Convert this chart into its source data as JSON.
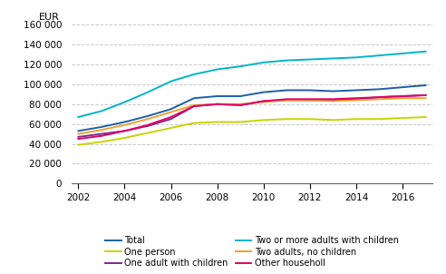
{
  "years": [
    2002,
    2003,
    2004,
    2005,
    2006,
    2007,
    2008,
    2009,
    2010,
    2011,
    2012,
    2013,
    2014,
    2015,
    2016,
    2017
  ],
  "series": {
    "Total": [
      53000,
      57000,
      62000,
      68000,
      75000,
      86000,
      88000,
      88000,
      92000,
      94000,
      94000,
      93000,
      94000,
      95000,
      97000,
      99000
    ],
    "One person": [
      39000,
      42000,
      46000,
      51000,
      56000,
      61000,
      62000,
      62000,
      64000,
      65000,
      65000,
      64000,
      65000,
      65000,
      66000,
      67000
    ],
    "One adult with children": [
      47000,
      50000,
      53000,
      58000,
      65000,
      78000,
      80000,
      79000,
      83000,
      84000,
      84000,
      84000,
      85000,
      87000,
      88000,
      89000
    ],
    "Two or more adults with children": [
      67000,
      73000,
      82000,
      92000,
      103000,
      110000,
      115000,
      118000,
      122000,
      124000,
      125000,
      126000,
      127000,
      129000,
      131000,
      133000
    ],
    "Two adults, no children": [
      50000,
      54000,
      59000,
      65000,
      72000,
      79000,
      80000,
      80000,
      82000,
      84000,
      84000,
      83000,
      84000,
      85000,
      86000,
      86000
    ],
    "Other householl": [
      45000,
      48000,
      53000,
      59000,
      67000,
      78000,
      80000,
      79000,
      83000,
      85000,
      85000,
      85000,
      86000,
      87000,
      88000,
      89000
    ]
  },
  "colors": {
    "Total": "#1a5fa8",
    "One person": "#c8d400",
    "One adult with children": "#7b2a8b",
    "Two or more adults with children": "#00b4c8",
    "Two adults, no children": "#f0a030",
    "Other householl": "#e0006a"
  },
  "ylabel": "EUR",
  "ylim": [
    0,
    160000
  ],
  "yticks": [
    0,
    20000,
    40000,
    60000,
    80000,
    100000,
    120000,
    140000,
    160000
  ],
  "xlim_min": 2002,
  "xlim_max": 2017,
  "xticks": [
    2002,
    2004,
    2006,
    2008,
    2010,
    2012,
    2014,
    2016
  ],
  "grid_color": "#c8c8c8",
  "background_color": "#ffffff",
  "legend_left_col": [
    "Total",
    "One adult with children",
    "Two adults, no children"
  ],
  "legend_right_col": [
    "One person",
    "Two or more adults with children",
    "Other householl"
  ]
}
